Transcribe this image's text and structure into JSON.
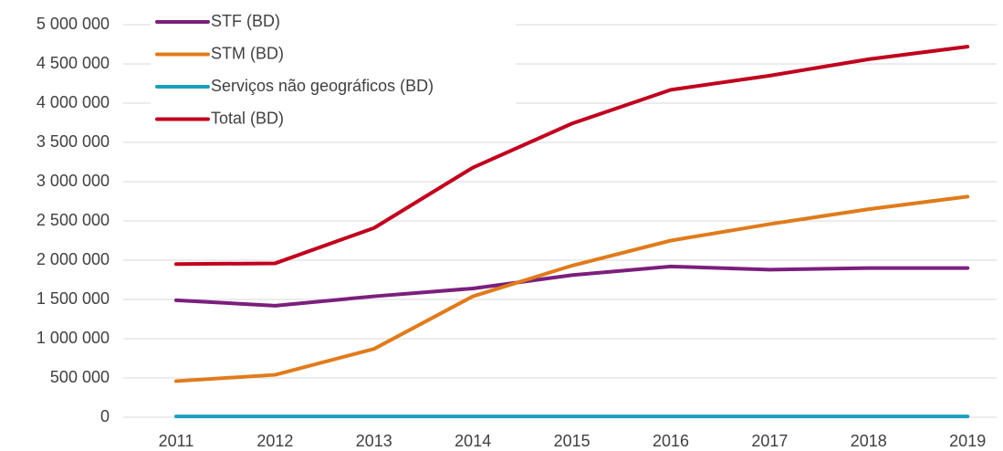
{
  "chart_data": {
    "type": "line",
    "categories": [
      "2011",
      "2012",
      "2013",
      "2014",
      "2015",
      "2016",
      "2017",
      "2018",
      "2019"
    ],
    "series": [
      {
        "name": "STF (BD)",
        "color": "#7b1f7d",
        "values": [
          1490000,
          1420000,
          1540000,
          1640000,
          1810000,
          1920000,
          1880000,
          1900000,
          1900000
        ]
      },
      {
        "name": "STM (BD)",
        "color": "#e07b1c",
        "values": [
          460000,
          540000,
          870000,
          1540000,
          1930000,
          2250000,
          2460000,
          2650000,
          2810000
        ]
      },
      {
        "name": "Serviços não geográficos (BD)",
        "color": "#1aa0bd",
        "values": [
          10000,
          10000,
          10000,
          10000,
          10000,
          10000,
          10000,
          10000,
          10000
        ]
      },
      {
        "name": "Total (BD)",
        "color": "#c0001e",
        "values": [
          1950000,
          1960000,
          2410000,
          3180000,
          3740000,
          4170000,
          4350000,
          4560000,
          4720000
        ]
      }
    ],
    "ylim": [
      0,
      5000000
    ],
    "yticks": [
      0,
      {
        "value": 500000,
        "label": "500 000"
      },
      {
        "value": 1000000,
        "label": "1 000 000"
      },
      {
        "value": 1500000,
        "label": "1 500 000"
      },
      {
        "value": 2000000,
        "label": "2 000 000"
      },
      {
        "value": 2500000,
        "label": "2 500 000"
      },
      {
        "value": 3000000,
        "label": "3 000 000"
      },
      {
        "value": 3500000,
        "label": "3 500 000"
      },
      {
        "value": 4000000,
        "label": "4 000 000"
      },
      {
        "value": 4500000,
        "label": "4 500 000"
      },
      {
        "value": 5000000,
        "label": "5 000 000"
      }
    ],
    "grid": true,
    "legend": "top-left"
  }
}
